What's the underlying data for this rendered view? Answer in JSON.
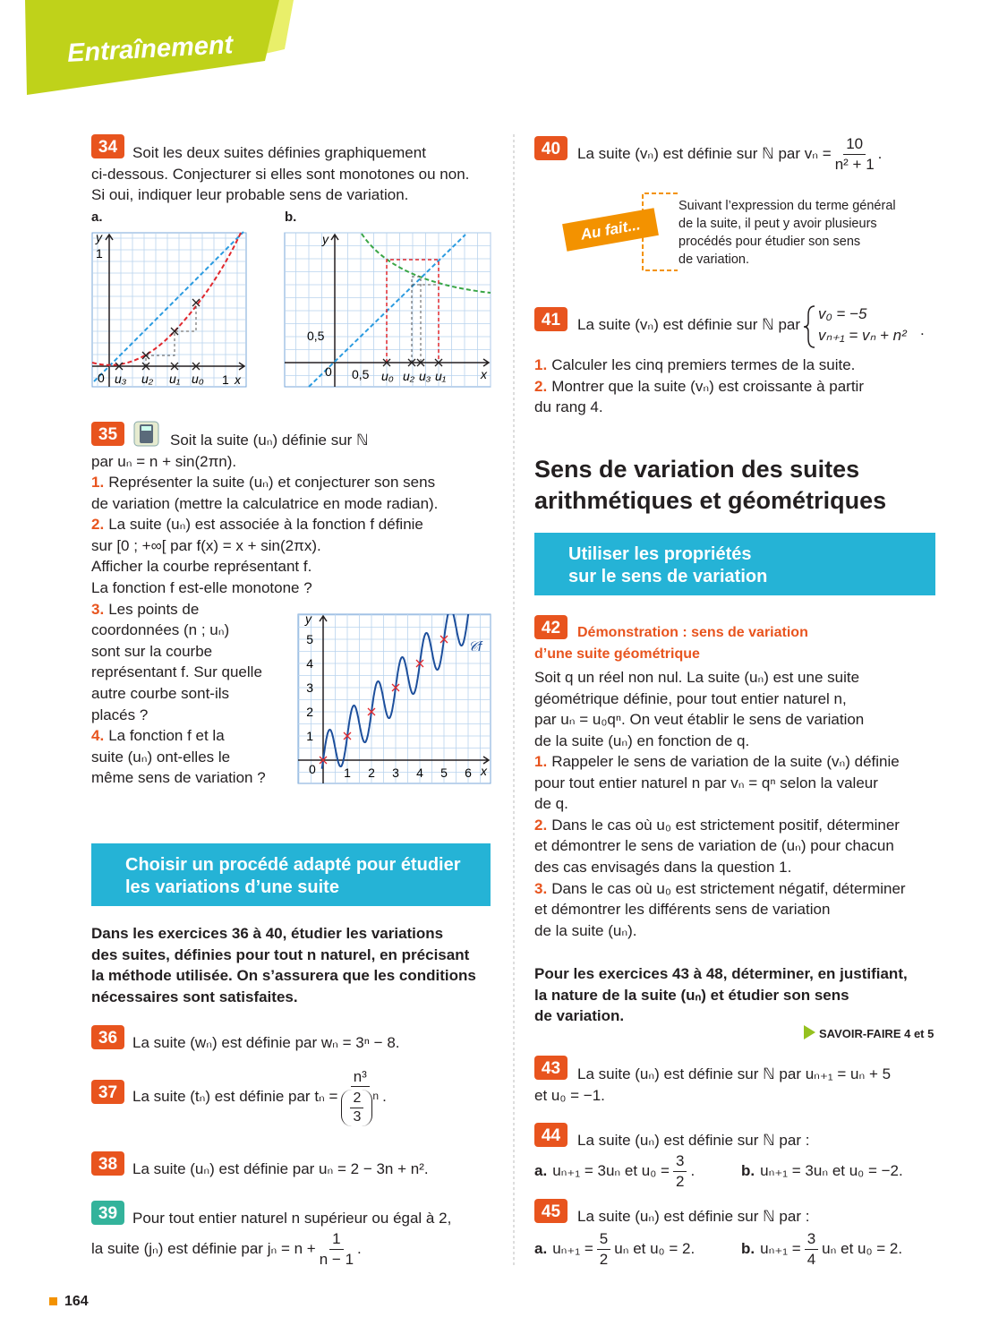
{
  "header": {
    "title": "Entraînement"
  },
  "ex34": {
    "number": "34",
    "lines": [
      "Soit les deux suites définies graphiquement",
      "ci-dessous. Conjecturer si elles sont monotones ou non.",
      "Si oui, indiquer leur probable sens de variation."
    ],
    "graph_a": {
      "label": "a.",
      "y_axis": "y",
      "x_axis": "x",
      "y_tick": "1",
      "origin": "0",
      "x_tick": "1",
      "points": [
        "u₃",
        "u₂",
        "u₁",
        "u₀"
      ]
    },
    "graph_b": {
      "label": "b.",
      "y_axis": "y",
      "x_axis": "x",
      "y_tick": "0,5",
      "origin": "0",
      "x_tick": "0,5",
      "points": [
        "u₀",
        "u₂",
        "u₃",
        "u₁"
      ]
    }
  },
  "ex35": {
    "number": "35",
    "intro": [
      "Soit la suite (uₙ) définie sur ℕ",
      "par uₙ = n + sin(2πn)."
    ],
    "questions": [
      {
        "num": "1.",
        "lines": [
          "Représenter la suite (uₙ) et conjecturer son sens",
          "de variation (mettre la calculatrice en mode radian)."
        ]
      },
      {
        "num": "2.",
        "lines": [
          "La suite (uₙ) est associée à la fonction f définie",
          "sur [0 ; +∞[ par f(x) = x + sin(2πx).",
          "Afficher la courbe représentant f.",
          "La fonction f est-elle monotone ?"
        ]
      },
      {
        "num": "3.",
        "lines": [
          "Les points de",
          "coordonnées (n ; uₙ)",
          "sont sur la courbe",
          "représentant f. Sur quelle",
          "autre courbe sont-ils",
          "placés ?"
        ]
      },
      {
        "num": "4.",
        "lines": [
          "La fonction f et la",
          "suite (uₙ) ont-elles le",
          "même sens de variation ?"
        ]
      }
    ],
    "graph": {
      "y_axis": "y",
      "x_axis": "x",
      "origin": "0",
      "x_ticks": [
        "1",
        "2",
        "3",
        "4",
        "5",
        "6"
      ],
      "y_ticks": [
        "1",
        "2",
        "3",
        "4",
        "5"
      ],
      "curve_label": "𝒞f"
    }
  },
  "method_box": {
    "lines": [
      "Choisir un procédé adapté pour étudier",
      "les variations d’une suite"
    ]
  },
  "instructions_36_40": {
    "lines": [
      "Dans les exercices 36 à 40, étudier les variations",
      "des suites, définies pour tout n naturel, en précisant",
      "la méthode utilisée. On s’assurera que les conditions",
      "nécessaires sont satisfaites."
    ]
  },
  "ex36": {
    "number": "36",
    "text": "La suite (wₙ) est définie par wₙ = 3ⁿ − 8."
  },
  "ex37": {
    "number": "37",
    "text": "La suite (tₙ) est définie par tₙ =",
    "numerator": "n³",
    "den_numerator": "2",
    "den_denominator": "3",
    "den_exponent": "n",
    "end": "."
  },
  "ex38": {
    "number": "38",
    "text": "La suite (uₙ) est définie par uₙ = 2 − 3n + n²."
  },
  "ex39": {
    "number": "39",
    "line1": "Pour tout entier naturel n supérieur ou égal à 2,",
    "line2": "la suite (jₙ) est définie par jₙ = n +",
    "numerator": "1",
    "denominator": "n − 1",
    "end": "."
  },
  "ex40": {
    "number": "40",
    "text": "La suite (vₙ) est définie sur ℕ par vₙ =",
    "numerator": "10",
    "denominator": "n² + 1",
    "end": "."
  },
  "au_fait": {
    "tag": "Au fait...",
    "lines": [
      "Suivant l’expression du terme général",
      "de la suite, il peut y avoir plusieurs",
      "procédés pour étudier son sens",
      "de variation."
    ]
  },
  "ex41": {
    "number": "41",
    "text": "La suite (vₙ) est définie sur ℕ par",
    "system": [
      "v₀ = −5",
      "vₙ₊₁ = vₙ + n²"
    ],
    "end": ".",
    "questions": [
      {
        "num": "1.",
        "lines": [
          "Calculer les cinq premiers termes de la suite."
        ]
      },
      {
        "num": "2.",
        "lines": [
          "Montrer que la suite (vₙ) est croissante à partir",
          "du rang 4."
        ]
      }
    ]
  },
  "section": {
    "title": [
      "Sens de variation des suites",
      "arithmétiques et géométriques"
    ]
  },
  "property_box": {
    "lines": [
      "Utiliser les propriétés",
      "sur le sens de variation"
    ]
  },
  "ex42": {
    "number": "42",
    "title": [
      "Démonstration : sens de variation",
      "d’une suite géométrique"
    ],
    "intro": [
      "Soit q un réel non nul. La suite (uₙ) est une suite",
      "géométrique définie, pour tout entier naturel n,",
      "par uₙ = u₀qⁿ. On veut établir le sens de variation",
      "de la suite (uₙ) en fonction de q."
    ],
    "questions": [
      {
        "num": "1.",
        "lines": [
          "Rappeler le sens de variation de la suite (vₙ) définie",
          "pour tout entier naturel n par vₙ = qⁿ selon la valeur",
          "de q."
        ]
      },
      {
        "num": "2.",
        "lines": [
          "Dans le cas où u₀ est strictement positif, déterminer",
          "et démontrer le sens de variation de (uₙ) pour chacun",
          "des cas envisagés dans la question 1."
        ]
      },
      {
        "num": "3.",
        "lines": [
          "Dans le cas où u₀ est strictement négatif, déterminer",
          "et démontrer les différents sens de variation",
          "de la suite (uₙ)."
        ]
      }
    ]
  },
  "instructions_43_48": {
    "lines": [
      "Pour les exercices 43 à 48, déterminer, en justifiant,",
      "la nature de la suite (uₙ) et étudier son sens",
      "de variation."
    ],
    "link": "SAVOIR-FAIRE 4 et 5"
  },
  "ex43": {
    "number": "43",
    "lines": [
      "La suite (uₙ) est définie sur ℕ par uₙ₊₁ = uₙ + 5",
      "et u₀ = −1."
    ]
  },
  "ex44": {
    "number": "44",
    "text": "La suite (uₙ) est définie sur ℕ par :",
    "a": {
      "label": "a.",
      "pre": "uₙ₊₁ = 3uₙ et u₀ =",
      "numerator": "3",
      "denominator": "2",
      "post": "."
    },
    "b": {
      "label": "b.",
      "pre": "uₙ₊₁ = 3uₙ et u₀ = −2."
    }
  },
  "ex45": {
    "number": "45",
    "text": "La suite (uₙ) est définie sur ℕ par :",
    "a": {
      "label": "a.",
      "pre": "uₙ₊₁ =",
      "numerator": "5",
      "denominator": "2",
      "post": "uₙ et u₀ = 2."
    },
    "b": {
      "label": "b.",
      "pre": "uₙ₊₁ =",
      "numerator": "3",
      "denominator": "4",
      "post": "uₙ et u₀ = 2."
    }
  },
  "page_number": "164"
}
